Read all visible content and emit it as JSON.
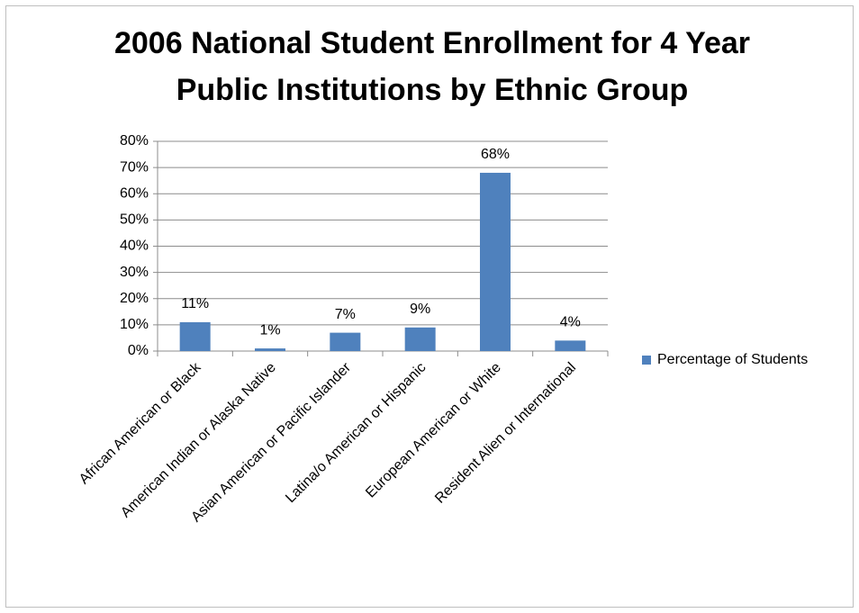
{
  "chart_data": {
    "type": "bar",
    "title": "2006 National Student Enrollment for 4 Year Public Institutions by Ethnic Group",
    "categories": [
      "African American or Black",
      "American Indian or Alaska Native",
      "Asian American or Pacific Islander",
      "Latina/o American or Hispanic",
      "European American or White",
      "Resident Alien or International"
    ],
    "series": [
      {
        "name": "Percentage of Students",
        "color": "#4f81bd",
        "values": [
          11,
          1,
          7,
          9,
          68,
          4
        ],
        "value_labels": [
          "11%",
          "1%",
          "7%",
          "9%",
          "68%",
          "4%"
        ]
      }
    ],
    "ylim": [
      0,
      80
    ],
    "yticks": [
      {
        "value": 0,
        "label": "0%"
      },
      {
        "value": 10,
        "label": "10%"
      },
      {
        "value": 20,
        "label": "20%"
      },
      {
        "value": 30,
        "label": "30%"
      },
      {
        "value": 40,
        "label": "40%"
      },
      {
        "value": 50,
        "label": "50%"
      },
      {
        "value": 60,
        "label": "60%"
      },
      {
        "value": 70,
        "label": "70%"
      },
      {
        "value": 80,
        "label": "80%"
      }
    ],
    "grid": true,
    "legend": "right"
  }
}
